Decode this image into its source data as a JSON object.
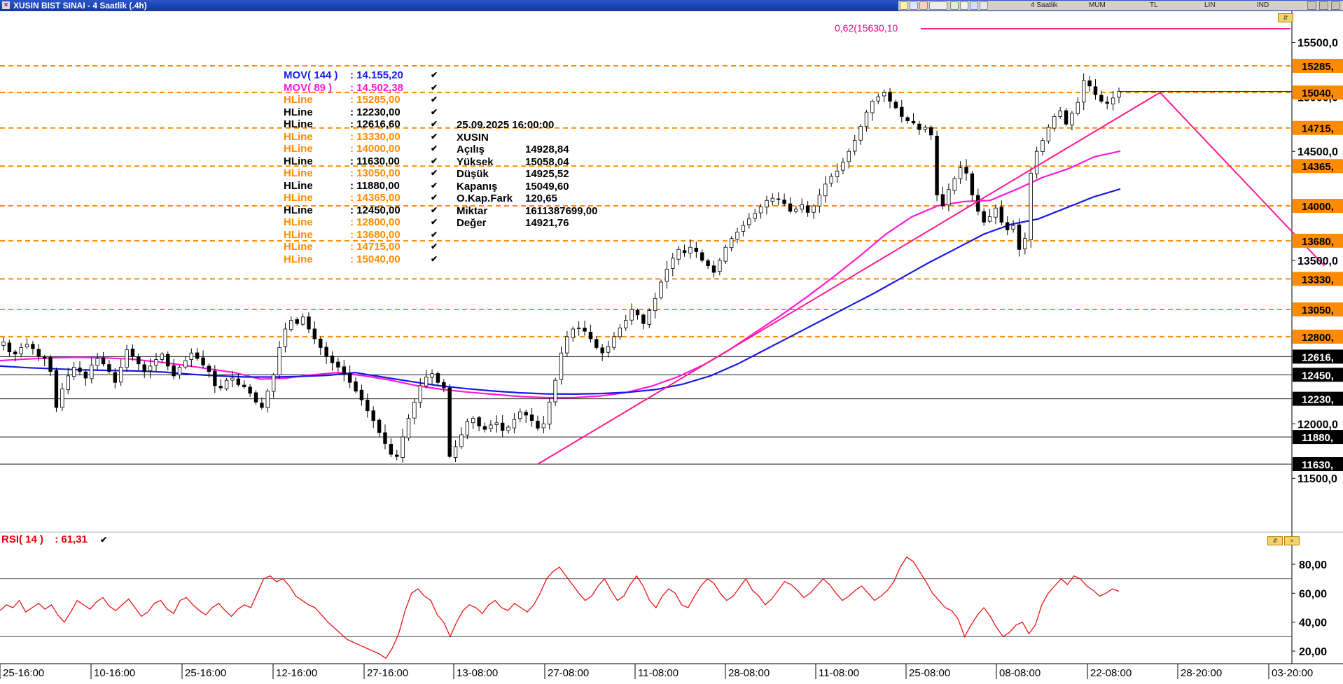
{
  "window": {
    "title": "XUSIN BIST SINAI - 4 Saatlik (.4h)",
    "toolbar_items": [
      "4 Saatlik",
      "MUM",
      "TL",
      "LIN",
      "IND"
    ]
  },
  "colors": {
    "mov144": "#1a1ae6",
    "mov89": "#ff1ad9",
    "hline_orange": "#ff8c00",
    "hline_black": "#000000",
    "rsi": "#e81515",
    "trendline": "#ff1a8c"
  },
  "legend": {
    "mov144": {
      "name": "MOV( 144 )",
      "value": ": 14.155,20"
    },
    "mov89": {
      "name": "MOV( 89 )",
      "value": ": 14.502,38"
    },
    "hlines": [
      {
        "name": "HLine",
        "value": ": 15285,00",
        "color": "orange"
      },
      {
        "name": "HLine",
        "value": ": 12230,00",
        "color": "black"
      },
      {
        "name": "HLine",
        "value": ": 12616,60",
        "color": "black"
      },
      {
        "name": "HLine",
        "value": ": 13330,00",
        "color": "orange"
      },
      {
        "name": "HLine",
        "value": ": 14000,00",
        "color": "orange"
      },
      {
        "name": "HLine",
        "value": ": 11630,00",
        "color": "black"
      },
      {
        "name": "HLine",
        "value": ": 13050,00",
        "color": "orange"
      },
      {
        "name": "HLine",
        "value": ": 11880,00",
        "color": "black"
      },
      {
        "name": "HLine",
        "value": ": 14365,00",
        "color": "orange"
      },
      {
        "name": "HLine",
        "value": ": 12450,00",
        "color": "black"
      },
      {
        "name": "HLine",
        "value": ": 12800,00",
        "color": "orange"
      },
      {
        "name": "HLine",
        "value": ": 13680,00",
        "color": "orange"
      },
      {
        "name": "HLine",
        "value": ": 14715,00",
        "color": "orange"
      },
      {
        "name": "HLine",
        "value": ": 15040,00",
        "color": "orange"
      }
    ]
  },
  "info_box": {
    "datetime": "25.09.2025  16:00:00",
    "symbol": "XUSIN",
    "rows": [
      {
        "key": "Açılış",
        "value": "14928,84"
      },
      {
        "key": "Yüksek",
        "value": "15058,04"
      },
      {
        "key": "Düşük",
        "value": "14925,52"
      },
      {
        "key": "Kapanış",
        "value": "15049,60"
      },
      {
        "key": "O.Kap.Fark",
        "value": "120,65"
      },
      {
        "key": "Miktar",
        "value": "1611387699,00"
      },
      {
        "key": "Değer",
        "value": "14921,76"
      }
    ]
  },
  "fib_label": "0,62(15630,10",
  "rsi_label": {
    "name": "RSI( 14 )",
    "value": ": 61,31"
  },
  "chart_data": {
    "type": "candlestick",
    "x_tick_labels": [
      "25-16:00",
      "10-16:00",
      "25-16:00",
      "12-16:00",
      "27-16:00",
      "13-08:00",
      "27-08:00",
      "11-08:00",
      "28-08:00",
      "11-08:00",
      "25-08:00",
      "08-08:00",
      "22-08:00",
      "28-20:00",
      "03-20:00"
    ],
    "price_axis": {
      "ylim": [
        11000,
        15700
      ],
      "tick_labels": [
        "15500,0",
        "15000,0",
        "14500,0",
        "13500,0",
        "12000,0",
        "11500,0"
      ],
      "tick_values": [
        15500,
        15000,
        14500,
        13500,
        12000,
        11500
      ]
    },
    "hline_tags": [
      {
        "value": 15285,
        "label": "15285,",
        "color": "orange"
      },
      {
        "value": 15040,
        "label": "15040,",
        "color": "orange"
      },
      {
        "value": 14715,
        "label": "14715,",
        "color": "orange"
      },
      {
        "value": 14365,
        "label": "14365,",
        "color": "orange"
      },
      {
        "value": 14000,
        "label": "14000,",
        "color": "orange"
      },
      {
        "value": 13680,
        "label": "13680,",
        "color": "orange"
      },
      {
        "value": 13330,
        "label": "13330,",
        "color": "orange"
      },
      {
        "value": 13050,
        "label": "13050,",
        "color": "orange"
      },
      {
        "value": 12800,
        "label": "12800,",
        "color": "orange"
      },
      {
        "value": 12616.6,
        "label": "12616,",
        "color": "black"
      },
      {
        "value": 12450,
        "label": "12450,",
        "color": "black"
      },
      {
        "value": 12230,
        "label": "12230,",
        "color": "black"
      },
      {
        "value": 11880,
        "label": "11880,",
        "color": "black"
      },
      {
        "value": 11630,
        "label": "11630,",
        "color": "black"
      }
    ],
    "fib_level": 15630.1,
    "trendlines": [
      {
        "from": [
          91,
          11630
        ],
        "to": [
          197,
          15040
        ]
      },
      {
        "from": [
          197,
          15040
        ],
        "to": [
          225,
          13450
        ]
      }
    ],
    "last_close": 15049.6,
    "close_series": [
      12750,
      12660,
      12640,
      12700,
      12730,
      12690,
      12620,
      12600,
      12480,
      12150,
      12320,
      12440,
      12520,
      12480,
      12420,
      12540,
      12600,
      12550,
      12480,
      12380,
      12520,
      12680,
      12620,
      12550,
      12480,
      12530,
      12590,
      12640,
      12530,
      12440,
      12520,
      12580,
      12650,
      12600,
      12540,
      12480,
      12350,
      12330,
      12400,
      12420,
      12360,
      12340,
      12280,
      12200,
      12150,
      12300,
      12450,
      12700,
      12870,
      12950,
      12920,
      12980,
      12870,
      12780,
      12700,
      12620,
      12560,
      12520,
      12460,
      12380,
      12300,
      12220,
      12120,
      12030,
      11920,
      11820,
      11720,
      11700,
      11880,
      12050,
      12200,
      12350,
      12430,
      12460,
      12380,
      12330,
      11700,
      11790,
      11900,
      12020,
      12050,
      11980,
      11950,
      11990,
      12010,
      11940,
      11970,
      12040,
      12110,
      12080,
      12030,
      11960,
      12000,
      12200,
      12400,
      12650,
      12800,
      12870,
      12880,
      12850,
      12780,
      12700,
      12650,
      12710,
      12800,
      12880,
      12950,
      13050,
      13000,
      12920,
      13040,
      13150,
      13300,
      13420,
      13520,
      13600,
      13570,
      13620,
      13580,
      13500,
      13450,
      13390,
      13500,
      13620,
      13700,
      13760,
      13820,
      13880,
      13930,
      13990,
      14050,
      14070,
      14060,
      14020,
      13950,
      13970,
      14010,
      13940,
      14000,
      14100,
      14200,
      14270,
      14320,
      14400,
      14500,
      14600,
      14730,
      14860,
      14960,
      15000,
      15040,
      14960,
      14900,
      14820,
      14780,
      14760,
      14700,
      14720,
      14650,
      14100,
      14000,
      14150,
      14250,
      14350,
      14300,
      14100,
      13950,
      13850,
      13900,
      13980,
      13850,
      13780,
      13820,
      13600,
      13700,
      14300,
      14500,
      14600,
      14720,
      14820,
      14870,
      14750,
      14850,
      14950,
      15150,
      15100,
      15020,
      14960,
      14940,
      14990,
      15049.6
    ],
    "mov144_series": [
      12530,
      12515,
      12505,
      12495,
      12490,
      12485,
      12475,
      12455,
      12440,
      12430,
      12430,
      12435,
      12445,
      12470,
      12430,
      12390,
      12352,
      12325,
      12302,
      12285,
      12275,
      12273,
      12278,
      12290,
      12315,
      12365,
      12440,
      12550,
      12680,
      12810,
      12940,
      13070,
      13200,
      13340,
      13480,
      13610,
      13740,
      13830,
      13880,
      13980,
      14080,
      14155.2
    ],
    "mov89_series": [
      12580,
      12595,
      12605,
      12610,
      12605,
      12595,
      12570,
      12540,
      12505,
      12470,
      12410,
      12420,
      12450,
      12470,
      12440,
      12400,
      12350,
      12315,
      12290,
      12270,
      12250,
      12240,
      12240,
      12255,
      12285,
      12345,
      12430,
      12540,
      12680,
      12840,
      13000,
      13170,
      13350,
      13540,
      13740,
      13900,
      14000,
      14040,
      14050,
      14150,
      14260,
      14340,
      14450,
      14502.38
    ],
    "rsi": {
      "ylim": [
        5,
        95
      ],
      "tick_labels": [
        "80,00",
        "60,00",
        "40,00",
        "20,00"
      ],
      "tick_values": [
        80,
        60,
        40,
        20
      ],
      "bands": [
        70,
        30
      ],
      "last_value": 61.31,
      "series": [
        48,
        52,
        50,
        55,
        47,
        50,
        53,
        49,
        52,
        45,
        40,
        47,
        55,
        52,
        49,
        54,
        57,
        51,
        48,
        52,
        56,
        50,
        44,
        47,
        53,
        55,
        49,
        46,
        55,
        57,
        52,
        48,
        45,
        50,
        53,
        48,
        44,
        49,
        52,
        50,
        60,
        70,
        72,
        68,
        70,
        65,
        58,
        55,
        52,
        50,
        45,
        40,
        36,
        32,
        28,
        26,
        24,
        22,
        20,
        18,
        15,
        22,
        32,
        48,
        60,
        63,
        58,
        55,
        45,
        40,
        30,
        40,
        48,
        52,
        50,
        46,
        52,
        55,
        50,
        48,
        53,
        50,
        47,
        52,
        60,
        70,
        75,
        78,
        72,
        66,
        60,
        55,
        58,
        65,
        70,
        62,
        55,
        58,
        66,
        72,
        65,
        55,
        50,
        58,
        63,
        60,
        52,
        50,
        58,
        65,
        70,
        67,
        60,
        55,
        58,
        64,
        70,
        62,
        58,
        52,
        56,
        62,
        68,
        66,
        62,
        57,
        60,
        65,
        70,
        66,
        60,
        55,
        58,
        62,
        65,
        60,
        55,
        58,
        62,
        68,
        78,
        85,
        82,
        75,
        68,
        60,
        55,
        50,
        48,
        42,
        30,
        38,
        45,
        50,
        44,
        36,
        30,
        33,
        38,
        40,
        32,
        38,
        52,
        60,
        65,
        70,
        66,
        72,
        70,
        65,
        62,
        58,
        60,
        63,
        61.31
      ]
    }
  }
}
